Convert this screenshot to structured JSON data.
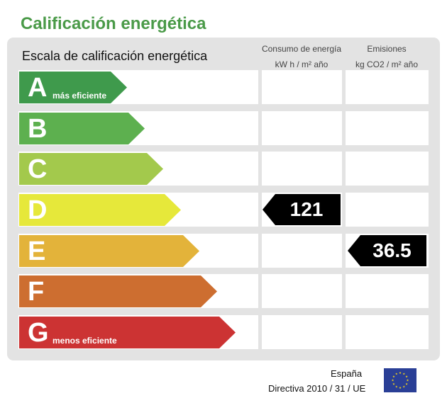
{
  "header": {
    "title": "Calificación energética"
  },
  "table": {
    "scale_heading": "Escala de calificación energética",
    "consumption_header_line1": "Consumo de energía",
    "consumption_header_line2": "kW h / m² año",
    "emissions_header_line1": "Emisiones",
    "emissions_header_line2": "kg CO2 / m² año"
  },
  "rows": [
    {
      "letter": "A",
      "sublabel": "más eficiente",
      "color": "#3f9a4c",
      "consumption": "",
      "emissions": ""
    },
    {
      "letter": "B",
      "sublabel": "",
      "color": "#5db04f",
      "consumption": "",
      "emissions": ""
    },
    {
      "letter": "C",
      "sublabel": "",
      "color": "#a3c94c",
      "consumption": "",
      "emissions": ""
    },
    {
      "letter": "D",
      "sublabel": "",
      "color": "#e6e83a",
      "consumption": "121",
      "emissions": ""
    },
    {
      "letter": "E",
      "sublabel": "",
      "color": "#e3b33a",
      "consumption": "",
      "emissions": "36.5"
    },
    {
      "letter": "F",
      "sublabel": "",
      "color": "#cd6e30",
      "consumption": "",
      "emissions": ""
    },
    {
      "letter": "G",
      "sublabel": "menos eficiente",
      "color": "#cc3333",
      "consumption": "",
      "emissions": ""
    }
  ],
  "footer": {
    "country": "España",
    "directive": "Directiva 2010 / 31 / UE",
    "flag_icon": "eu-flag-icon",
    "flag_colors": {
      "field": "#2a3f96",
      "stars": "#f2d21b"
    }
  }
}
